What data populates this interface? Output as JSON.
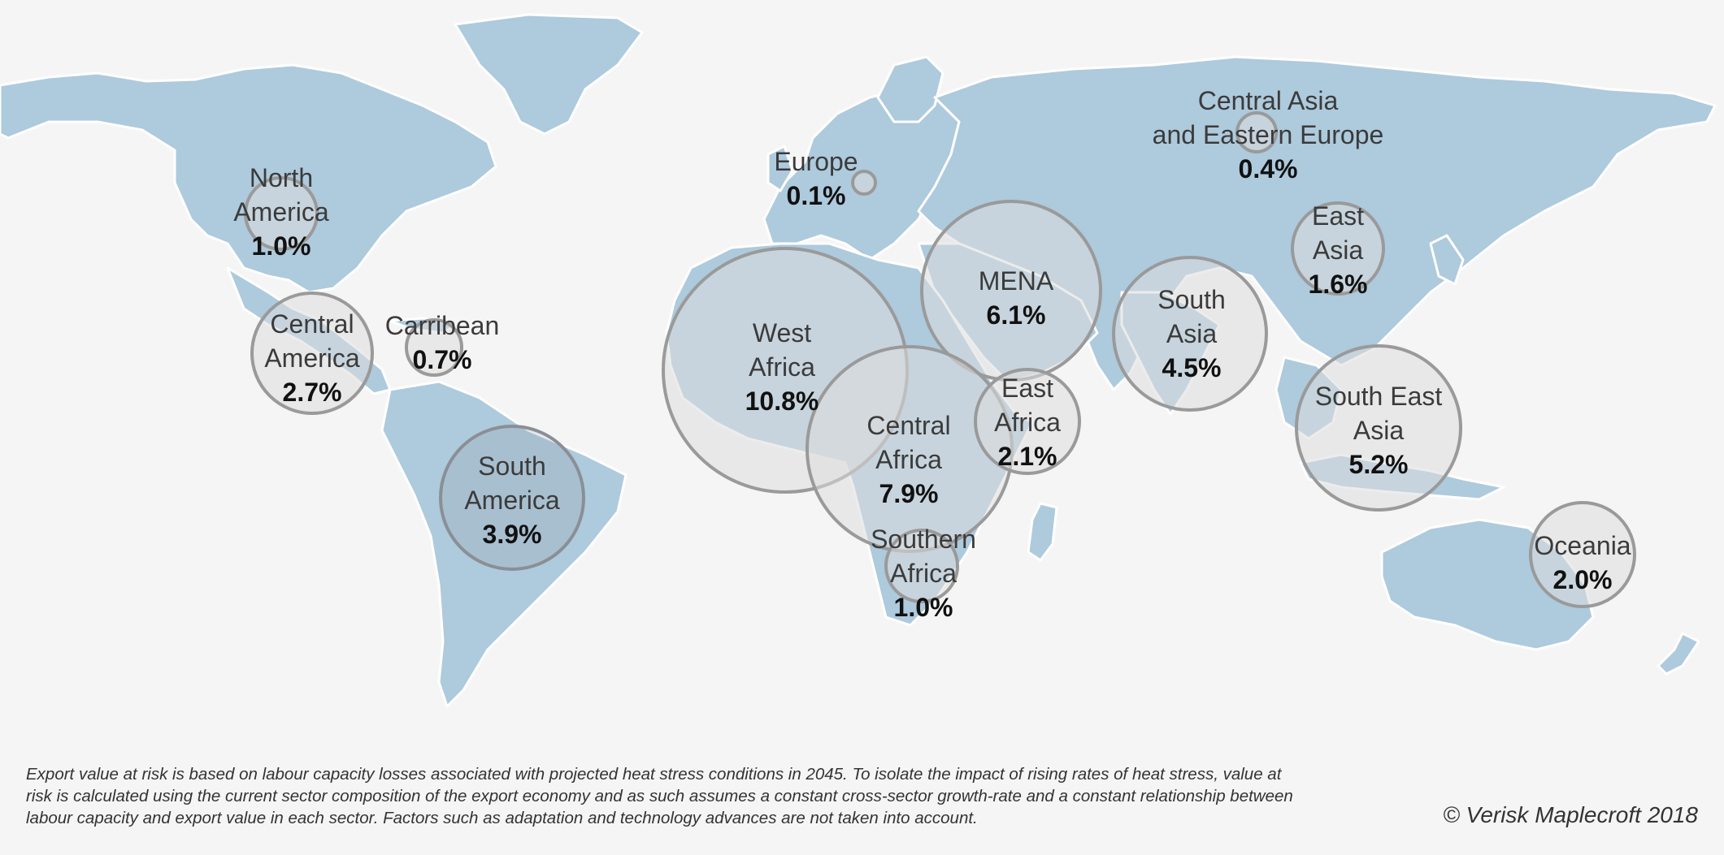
{
  "regions": [
    {
      "id": "north-america",
      "name_lines": [
        "North",
        "America"
      ],
      "value": "1.0%"
    },
    {
      "id": "central-america",
      "name_lines": [
        "Central",
        "America"
      ],
      "value": "2.7%"
    },
    {
      "id": "carribean",
      "name_lines": [
        "Carribean"
      ],
      "value": "0.7%"
    },
    {
      "id": "south-america",
      "name_lines": [
        "South",
        "America"
      ],
      "value": "3.9%"
    },
    {
      "id": "europe",
      "name_lines": [
        "Europe"
      ],
      "value": "0.1%"
    },
    {
      "id": "west-africa",
      "name_lines": [
        "West",
        "Africa"
      ],
      "value": "10.8%"
    },
    {
      "id": "mena",
      "name_lines": [
        "MENA"
      ],
      "value": "6.1%"
    },
    {
      "id": "central-africa",
      "name_lines": [
        "Central",
        "Africa"
      ],
      "value": "7.9%"
    },
    {
      "id": "east-africa",
      "name_lines": [
        "East",
        "Africa"
      ],
      "value": "2.1%"
    },
    {
      "id": "southern-africa",
      "name_lines": [
        "Southern",
        "Africa"
      ],
      "value": "1.0%"
    },
    {
      "id": "central-asia-eastern-europe",
      "name_lines": [
        "Central Asia",
        "and Eastern Europe"
      ],
      "value": "0.4%"
    },
    {
      "id": "south-asia",
      "name_lines": [
        "South",
        "Asia"
      ],
      "value": "4.5%"
    },
    {
      "id": "east-asia",
      "name_lines": [
        "East",
        "Asia"
      ],
      "value": "1.6%"
    },
    {
      "id": "south-east-asia",
      "name_lines": [
        "South East",
        "Asia"
      ],
      "value": "5.2%"
    },
    {
      "id": "oceania",
      "name_lines": [
        "Oceania"
      ],
      "value": "2.0%"
    }
  ],
  "footnote": "Export value at risk is based on labour capacity losses associated with projected heat stress conditions in 2045. To isolate the impact of rising rates of heat stress, value at risk is calculated using the current sector composition of the export economy and as such assumes a constant cross-sector growth-rate and a constant relationship between labour capacity and export value in each sector. Factors such as adaptation and technology advances are not taken into account.",
  "copyright": "© Verisk Maplecroft 2018",
  "colors": {
    "land": "#aecadd",
    "bubble_stroke": "#9a9a9a",
    "background": "#f5f5f5"
  }
}
